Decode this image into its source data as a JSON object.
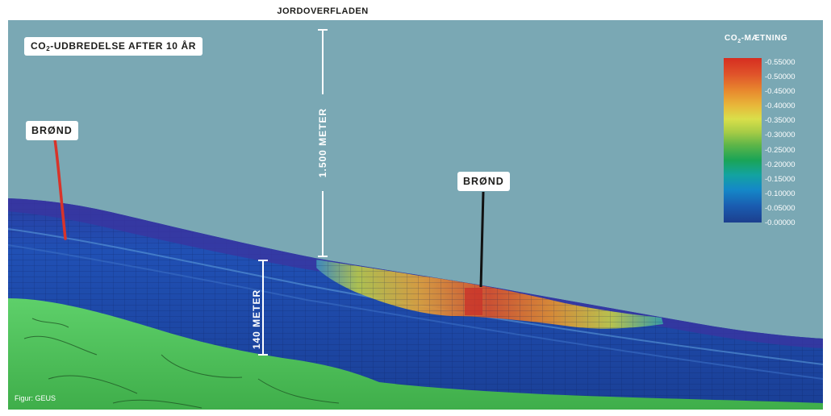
{
  "surface_label": "JORDOVERFLADEN",
  "title": {
    "prefix": "CO",
    "sub": "2",
    "suffix": "-UDBREDELSE AFTER 10 ÅR"
  },
  "well_label_left": "BRØND",
  "well_label_right": "BRØND",
  "depth_total_label": "1.500 METER",
  "thickness_label": "140 METER",
  "legend": {
    "title_prefix": "CO",
    "title_sub": "2",
    "title_suffix": "-MÆTNING",
    "ticks": [
      "-0.55000",
      "-0.50000",
      "-0.45000",
      "-0.40000",
      "-0.35000",
      "-0.30000",
      "-0.25000",
      "-0.20000",
      "-0.15000",
      "-0.10000",
      "-0.05000",
      "-0.00000"
    ]
  },
  "credit": "Figur: GEUS",
  "colors": {
    "sky": "#7aa8b4",
    "reservoir_blue": "#1f4ea8",
    "caprock_purple": "#34389a",
    "ground_green": "#4fc05a",
    "well_red": "#d8342a",
    "well_black": "#111111"
  }
}
